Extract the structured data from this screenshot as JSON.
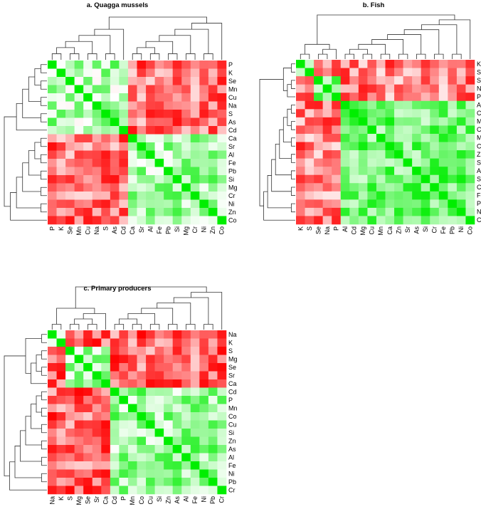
{
  "chart_data": [
    {
      "type": "heatmap",
      "title": "a. Quagga mussels",
      "labels": [
        "P",
        "K",
        "Se",
        "Mn",
        "Cu",
        "Na",
        "S",
        "As",
        "Cd",
        "Ca",
        "Sr",
        "Al",
        "Fe",
        "Pb",
        "Si",
        "Mg",
        "Cr",
        "Ni",
        "Zn",
        "Co"
      ],
      "groups": [
        [
          "P",
          "K",
          "Se",
          "Mn",
          "Cu",
          "Na",
          "S",
          "As",
          "Cd"
        ],
        [
          "Ca",
          "Sr",
          "Al",
          "Fe",
          "Pb",
          "Si",
          "Mg",
          "Cr",
          "Ni",
          "Zn",
          "Co"
        ]
      ],
      "within_group": 0.35,
      "between_groups": -0.55,
      "color_low": "#ff0000",
      "color_mid": "#ffffff",
      "color_high": "#00ee00"
    },
    {
      "type": "heatmap",
      "title": "b. Fish",
      "labels": [
        "K",
        "S",
        "Se",
        "Na",
        "P",
        "Al",
        "Cd",
        "Mg",
        "Cu",
        "Mn",
        "Ca",
        "Zn",
        "Sr",
        "As",
        "Si",
        "Cr",
        "Fe",
        "Pb",
        "Ni",
        "Co"
      ],
      "groups": [
        [
          "K",
          "S"
        ],
        [
          "Se",
          "Na",
          "P"
        ],
        [
          "Al",
          "Cd",
          "Mg",
          "Cu",
          "Mn",
          "Ca",
          "Zn",
          "Sr",
          "As",
          "Si",
          "Cr",
          "Fe",
          "Pb",
          "Ni",
          "Co"
        ]
      ],
      "within_group": 0.55,
      "between_groups": -0.5,
      "color_low": "#ff0000",
      "color_mid": "#ffffff",
      "color_high": "#00ee00"
    },
    {
      "type": "heatmap",
      "title": "c. Primary producers",
      "labels": [
        "Na",
        "K",
        "S",
        "Mg",
        "Se",
        "Sr",
        "Ca",
        "Cd",
        "P",
        "Mn",
        "Co",
        "Cu",
        "Si",
        "Zn",
        "As",
        "Al",
        "Fe",
        "Ni",
        "Pb",
        "Cr"
      ],
      "groups": [
        [
          "Na",
          "K"
        ],
        [
          "S",
          "Mg",
          "Se",
          "Sr",
          "Ca"
        ],
        [
          "Cd",
          "P",
          "Mn",
          "Co",
          "Cu",
          "Si",
          "Zn",
          "As",
          "Al",
          "Fe",
          "Ni",
          "Pb",
          "Cr"
        ]
      ],
      "within_group": 0.4,
      "between_groups": -0.6,
      "color_low": "#ff0000",
      "color_mid": "#ffffff",
      "color_high": "#00ee00"
    }
  ]
}
